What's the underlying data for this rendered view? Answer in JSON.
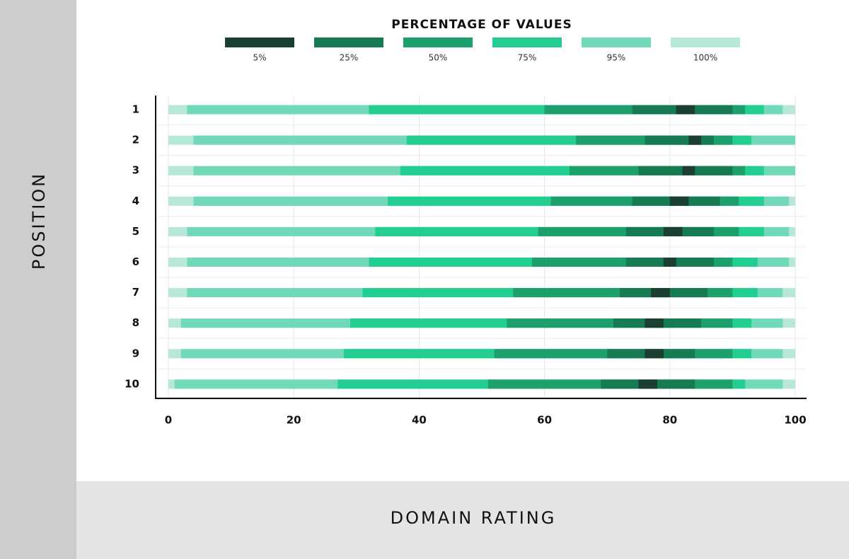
{
  "chart_data": {
    "type": "range_bar",
    "legend_title": "PERCENTAGE OF VALUES",
    "x_label": "DOMAIN RATING",
    "y_label": "POSITION",
    "categories": [
      "1",
      "2",
      "3",
      "4",
      "5",
      "6",
      "7",
      "8",
      "9",
      "10"
    ],
    "xlim": [
      0,
      100
    ],
    "xticks": [
      0,
      20,
      40,
      60,
      80,
      100
    ],
    "grid": true,
    "series": [
      {
        "name": "5%",
        "color": "#1b3f30",
        "low": [
          81,
          83,
          82,
          80,
          79,
          79,
          77,
          76,
          76,
          75
        ],
        "high": [
          84,
          85,
          84,
          83,
          82,
          81,
          80,
          79,
          79,
          78
        ]
      },
      {
        "name": "25%",
        "color": "#167a52",
        "low": [
          74,
          76,
          75,
          74,
          73,
          73,
          72,
          71,
          70,
          69
        ],
        "high": [
          90,
          87,
          90,
          88,
          87,
          87,
          86,
          85,
          84,
          84
        ]
      },
      {
        "name": "50%",
        "color": "#1ea06c",
        "low": [
          60,
          65,
          64,
          61,
          59,
          58,
          55,
          54,
          52,
          51
        ],
        "high": [
          92,
          90,
          92,
          91,
          91,
          90,
          90,
          90,
          90,
          90
        ]
      },
      {
        "name": "75%",
        "color": "#22cf90",
        "low": [
          32,
          38,
          37,
          35,
          33,
          32,
          31,
          29,
          28,
          27
        ],
        "high": [
          95,
          93,
          95,
          95,
          95,
          94,
          94,
          93,
          93,
          92
        ]
      },
      {
        "name": "95%",
        "color": "#72d8ba",
        "low": [
          3,
          4,
          4,
          4,
          3,
          3,
          3,
          2,
          2,
          1
        ],
        "high": [
          98,
          100,
          100,
          99,
          99,
          99,
          98,
          98,
          98,
          98
        ]
      },
      {
        "name": "100%",
        "color": "#b7e7d8",
        "low": [
          0,
          0,
          0,
          0,
          0,
          0,
          0,
          0,
          0,
          0
        ],
        "high": [
          100,
          100,
          100,
          100,
          100,
          100,
          100,
          100,
          100,
          100
        ]
      }
    ]
  }
}
